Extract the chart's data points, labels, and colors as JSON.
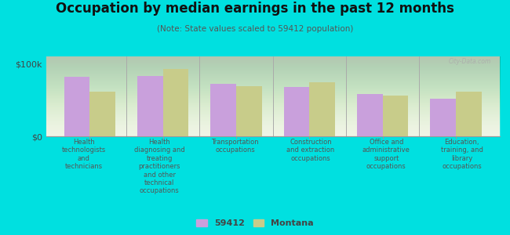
{
  "title": "Occupation by median earnings in the past 12 months",
  "subtitle": "(Note: State values scaled to 59412 population)",
  "categories": [
    "Health\ntechnologists\nand\ntechnicians",
    "Health\ndiagnosing and\ntreating\npractitioners\nand other\ntechnical\noccupations",
    "Transportation\noccupations",
    "Construction\nand extraction\noccupations",
    "Office and\nadministrative\nsupport\noccupations",
    "Education,\ntraining, and\nlibrary\noccupations"
  ],
  "values_59412": [
    82000,
    83000,
    72000,
    68000,
    58000,
    52000
  ],
  "values_montana": [
    62000,
    93000,
    69000,
    74000,
    56000,
    62000
  ],
  "color_59412": "#c9a0dc",
  "color_montana": "#c8cc8a",
  "bar_width": 0.35,
  "ylim": [
    0,
    110000
  ],
  "ytick_labels": [
    "$0",
    "$100k"
  ],
  "background_color": "#00e0e0",
  "plot_bg_color": "#eef3e2",
  "legend_label_59412": "59412",
  "legend_label_montana": "Montana",
  "watermark": "City-Data.com",
  "title_fontsize": 12,
  "subtitle_fontsize": 7.5
}
